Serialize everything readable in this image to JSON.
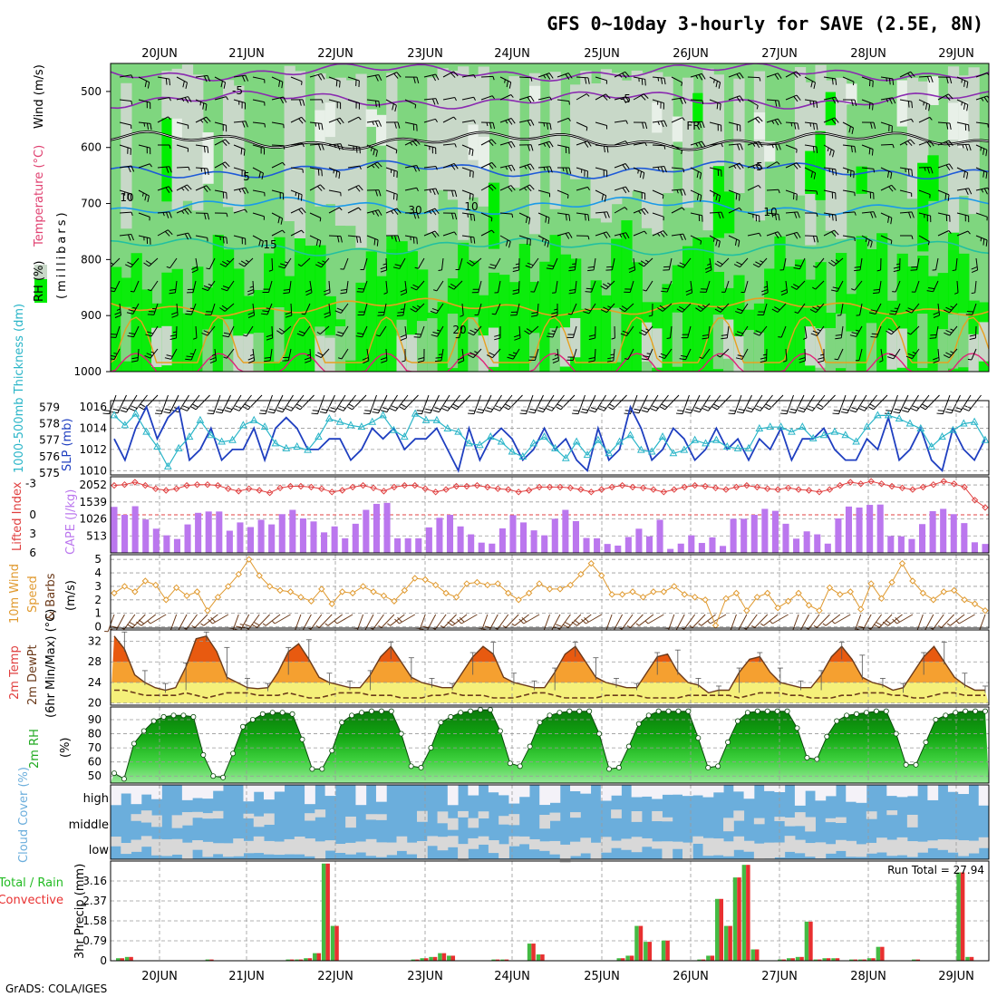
{
  "title": "GFS 0~10day 3-hourly for SAVE (2.5E, 8N)",
  "credit": "GrADS: COLA/IGES",
  "dates": [
    "20JUN",
    "21JUN",
    "22JUN",
    "23JUN",
    "24JUN",
    "25JUN",
    "26JUN",
    "27JUN",
    "28JUN",
    "29JUN"
  ],
  "colors": {
    "rh_green": "#00ee00",
    "rh_mid": "#7fd67f",
    "rh_gray": "#c8d8c8",
    "rh_light": "#e8f0e8",
    "slp": "#1f3fc0",
    "thickness": "#2ab5c8",
    "lifted": "#e04040",
    "cape": "#bb77ee",
    "wind": "#e09a30",
    "temp_hot": "#e85a10",
    "temp_warm": "#f5a030",
    "temp_yellow": "#f5f07a",
    "dewpt": "#6b3a1a",
    "cloud_blue": "#6baedc",
    "cloud_gray": "#d8d8d8",
    "cloud_white": "#f4f2f8",
    "rain": "#e83030",
    "total": "#44bb44"
  },
  "chart_data": [
    {
      "id": "upper",
      "type": "heatmap",
      "ylabel_parts": [
        "RH (%)",
        "Temperature (°C)",
        "Wind (m/s)",
        "(millibars)"
      ],
      "yticks": [
        500,
        600,
        700,
        800,
        900,
        1000
      ],
      "ylim": [
        1000,
        450
      ],
      "contour_labels": [
        "-5",
        "-5",
        "FR",
        "5",
        "5",
        "10",
        "10",
        "15",
        "20",
        "10",
        "30"
      ],
      "contours": [
        {
          "name": "-10",
          "level": 465,
          "color": "#8a2ab0"
        },
        {
          "name": "-5",
          "level": 515,
          "color": "#8a2ab0"
        },
        {
          "name": "FR",
          "level": 588,
          "color": "#000000"
        },
        {
          "name": "5",
          "level": 640,
          "color": "#1e5ad8"
        },
        {
          "name": "10",
          "level": 705,
          "color": "#1a9ae8"
        },
        {
          "name": "15",
          "level": 778,
          "color": "#22c0a0"
        },
        {
          "name": "20",
          "level": 885,
          "color": "#e8a020"
        }
      ]
    },
    {
      "id": "slp_thickness",
      "type": "line",
      "ylabel_left": "1000-500mb Thickness (dm)",
      "ylabel_right": "SLP (mb)",
      "yticks_left": [
        575,
        576,
        577,
        578,
        579
      ],
      "yticks_right": [
        1010,
        1012,
        1014,
        1016
      ],
      "series": [
        {
          "name": "SLP",
          "values": [
            1013,
            1011,
            1014,
            1016,
            1013,
            1015,
            1016,
            1011,
            1012,
            1014,
            1011,
            1012,
            1012,
            1014,
            1011,
            1014,
            1015,
            1014,
            1012,
            1012,
            1013,
            1013,
            1011,
            1012,
            1014,
            1013,
            1014,
            1012,
            1013,
            1013,
            1014,
            1012,
            1010,
            1014,
            1011,
            1013,
            1014,
            1013,
            1011,
            1012,
            1014,
            1012,
            1013,
            1011,
            1010,
            1014,
            1011,
            1012,
            1016,
            1014,
            1011,
            1012,
            1014,
            1013,
            1011,
            1012,
            1014,
            1012,
            1013,
            1011,
            1013,
            1012,
            1014,
            1011,
            1013,
            1013,
            1014,
            1012,
            1011,
            1011,
            1013,
            1012,
            1015,
            1011,
            1012,
            1014,
            1011,
            1010,
            1014,
            1012,
            1011,
            1013
          ]
        },
        {
          "name": "Thickness",
          "values": [
            578.5,
            577.9,
            578.6,
            577.5,
            576.6,
            575.4,
            576.5,
            577.2,
            578.2,
            577.3,
            576.9,
            577.0,
            577.9,
            578.2,
            577.8,
            576.8,
            576.5,
            576.6,
            576.4,
            577.2,
            578.3,
            578.1,
            577.9,
            577.8,
            578.1,
            578.5,
            577.6,
            577.2,
            578.6,
            578.2,
            578.2,
            577.7,
            577.5,
            576.8,
            576.7,
            577.2,
            576.9,
            576.3,
            576.0,
            576.8,
            577.2,
            576.5,
            575.9,
            576.9,
            576.1,
            577.0,
            576.2,
            576.9,
            577.3,
            576.4,
            576.3,
            577.2,
            576.2,
            576.4,
            577.0,
            576.8,
            577.0,
            576.6,
            576.5,
            576.5,
            577.7,
            577.8,
            577.8,
            577.5,
            577.8,
            577.1,
            577.3,
            577.5,
            577.3,
            576.9,
            577.8,
            578.5,
            578.5,
            578.3,
            578.0,
            577.7,
            576.6,
            577.2,
            577.6,
            578.0,
            578.1,
            577.0
          ]
        }
      ]
    },
    {
      "id": "cape_li",
      "type": "bar",
      "ylabel_left": "Lifted Index",
      "ylabel_right": "CAPE (J/kg)",
      "yticks_left": [
        "-3",
        "0",
        "3",
        "6"
      ],
      "yticks_right": [
        "513",
        "1026",
        "1539",
        "2052"
      ],
      "series": [
        {
          "name": "CAPE",
          "values": [
            1390,
            1150,
            1410,
            1010,
            730,
            530,
            420,
            860,
            1210,
            1250,
            1250,
            670,
            920,
            780,
            1000,
            860,
            1170,
            1300,
            1040,
            950,
            620,
            800,
            440,
            880,
            1300,
            1480,
            1510,
            440,
            440,
            440,
            770,
            1060,
            1150,
            800,
            560,
            310,
            280,
            740,
            1140,
            920,
            680,
            530,
            1030,
            1300,
            960,
            450,
            440,
            270,
            220,
            480,
            730,
            500,
            1000,
            120,
            280,
            530,
            300,
            470,
            210,
            1030,
            1030,
            1150,
            1330,
            1270,
            880,
            430,
            650,
            560,
            280,
            1040,
            1400,
            1370,
            1450,
            1460,
            510,
            500,
            420,
            870,
            1260,
            1330,
            1170,
            900,
            320,
            270
          ]
        },
        {
          "name": "Lifted Index",
          "values": [
            -3.6,
            -3.7,
            -4.0,
            -3.6,
            -3.2,
            -3.0,
            -3.2,
            -3.6,
            -3.7,
            -3.7,
            -3.6,
            -3.2,
            -2.9,
            -3.2,
            -3.0,
            -2.7,
            -3.3,
            -3.5,
            -3.5,
            -3.4,
            -3.2,
            -2.8,
            -3.0,
            -3.4,
            -3.6,
            -3.3,
            -2.9,
            -3.4,
            -3.6,
            -3.6,
            -3.2,
            -2.8,
            -3.1,
            -3.5,
            -3.5,
            -3.6,
            -3.4,
            -3.2,
            -3.1,
            -2.8,
            -3.0,
            -3.4,
            -3.4,
            -3.4,
            -3.3,
            -3.1,
            -2.8,
            -3.1,
            -3.4,
            -3.6,
            -3.4,
            -3.3,
            -3.1,
            -2.8,
            -3.1,
            -3.4,
            -3.6,
            -3.5,
            -3.3,
            -3.1,
            -3.4,
            -3.6,
            -3.4,
            -3.2,
            -3.1,
            -3.3,
            -3.1,
            -3.0,
            -2.8,
            -3.1,
            -3.6,
            -4.0,
            -3.8,
            -4.1,
            -3.8,
            -3.5,
            -3.3,
            -3.1,
            -3.4,
            -3.7,
            -4.1,
            -3.8,
            -3.4,
            -1.8,
            -0.9
          ]
        }
      ]
    },
    {
      "id": "wind10m",
      "type": "line",
      "ylabel_parts": [
        "10m Wind",
        "Speed",
        "& Barbs",
        "(m/s)"
      ],
      "yticks": [
        0,
        1,
        2,
        3,
        4,
        5
      ],
      "series": [
        {
          "name": "10m Wind Speed",
          "values": [
            2.5,
            3.0,
            2.6,
            3.4,
            3.1,
            2.0,
            2.9,
            2.3,
            2.6,
            1.2,
            2.2,
            3.0,
            3.9,
            5.0,
            3.8,
            3.0,
            2.7,
            2.6,
            2.2,
            1.9,
            2.8,
            1.7,
            2.6,
            2.5,
            3.0,
            2.6,
            2.3,
            1.9,
            2.7,
            3.6,
            3.5,
            3.1,
            2.5,
            2.2,
            3.2,
            3.3,
            3.1,
            3.2,
            2.5,
            2.0,
            2.5,
            3.2,
            2.8,
            2.8,
            3.1,
            3.9,
            4.7,
            3.8,
            2.4,
            2.4,
            2.6,
            2.2,
            2.6,
            2.6,
            3.0,
            2.4,
            2.2,
            2.0,
            0.1,
            2.1,
            2.5,
            1.2,
            2.2,
            2.5,
            1.4,
            1.9,
            2.5,
            1.6,
            1.2,
            2.9,
            2.4,
            2.6,
            1.3,
            3.2,
            2.1,
            3.3,
            4.7,
            3.4,
            2.5,
            2.0,
            2.6,
            2.7,
            2.0,
            1.7,
            1.2
          ]
        }
      ]
    },
    {
      "id": "temp2m",
      "type": "area",
      "ylabel_parts": [
        "2m Temp",
        "2m DewPt",
        "(6hr Min/Max) (°C)"
      ],
      "yticks": [
        20,
        24,
        28,
        32
      ],
      "ylim": [
        20,
        34
      ],
      "series": [
        {
          "name": "2m Temp",
          "values": [
            33,
            30.5,
            25.5,
            24,
            23,
            22.5,
            23,
            27,
            32.5,
            33,
            30,
            25,
            24,
            23,
            22.8,
            23,
            26,
            30,
            31.5,
            28.5,
            25,
            24,
            23.5,
            23,
            23,
            25.5,
            29,
            31,
            28,
            25,
            24,
            23.5,
            23,
            23,
            26,
            29,
            31,
            29.5,
            25,
            24,
            23.5,
            23,
            23,
            26,
            29.5,
            31,
            28,
            25,
            24,
            23.5,
            23,
            23,
            26,
            29,
            29.5,
            26,
            24,
            23.5,
            22,
            22.5,
            22.5,
            26,
            28.5,
            29,
            26,
            24,
            23.5,
            23,
            23,
            25.5,
            29,
            31,
            28.5,
            25,
            24,
            23.5,
            22.5,
            23,
            26,
            29,
            31,
            28,
            25,
            23.5,
            22.5,
            22.5
          ]
        },
        {
          "name": "2m DewPt",
          "values": [
            22.5,
            22.5,
            22,
            21.5,
            21.5,
            21.5,
            21.5,
            22,
            21.5,
            21,
            21.5,
            22,
            22,
            22,
            21.5,
            21.5,
            21.5,
            22,
            21.5,
            21,
            21,
            21.5,
            22,
            22,
            22,
            21.5,
            21.5,
            21.5,
            21,
            21,
            21,
            21.5,
            21.5,
            22,
            21.5,
            21.5,
            21.5,
            21,
            21,
            21,
            21.5,
            22,
            22,
            21.5,
            21,
            21,
            21,
            21,
            21.5,
            21.5,
            21.5,
            21.5,
            21,
            21,
            21,
            21,
            21.5,
            21.5,
            21.5,
            21.5,
            21.5,
            21,
            21.5,
            22,
            22,
            22,
            21.5,
            21.5,
            21,
            21,
            21,
            21.5,
            21.5,
            22,
            22,
            22,
            21.5,
            21.5,
            21,
            21,
            21.5,
            22,
            22,
            21.5,
            21.5,
            21.5
          ]
        }
      ]
    },
    {
      "id": "rh2m",
      "type": "area",
      "ylabel_parts": [
        "2m RH",
        "(%)"
      ],
      "yticks": [
        50,
        60,
        70,
        80,
        90
      ],
      "ylim": [
        45,
        99
      ],
      "series": [
        {
          "name": "2m RH",
          "values": [
            52,
            48,
            73,
            82,
            89,
            92,
            93,
            93,
            92,
            65,
            50,
            49,
            66,
            85,
            90,
            94,
            95,
            95,
            94,
            76,
            55,
            55,
            68,
            88,
            93,
            95,
            96,
            96,
            96,
            80,
            57,
            56,
            70,
            88,
            92,
            95,
            96,
            97,
            97,
            82,
            59,
            57,
            71,
            88,
            93,
            95,
            96,
            96,
            96,
            80,
            55,
            56,
            71,
            87,
            93,
            96,
            96,
            96,
            96,
            77,
            56,
            57,
            74,
            89,
            95,
            96,
            96,
            96,
            96,
            84,
            63,
            62,
            78,
            89,
            93,
            94,
            95,
            96,
            96,
            80,
            58,
            58,
            74,
            90,
            93,
            95,
            96,
            96,
            96
          ]
        }
      ]
    },
    {
      "id": "cloud",
      "type": "heatmap",
      "ylabel": "Cloud Cover (%)",
      "rows": [
        "high",
        "middle",
        "low"
      ]
    },
    {
      "id": "precip",
      "type": "bar",
      "ylabel_parts": [
        "Total / Rain",
        "Convective",
        "3hr Precip (mm)"
      ],
      "yticks": [
        "0",
        "0.79",
        "1.58",
        "2.37",
        "3.16"
      ],
      "ylim": [
        0,
        3.95
      ],
      "annotation": "Run Total = 27.94",
      "series": [
        {
          "name": "Total",
          "values": [
            0.1,
            0.15,
            0,
            0,
            0,
            0,
            0,
            0,
            0,
            0,
            0.05,
            0,
            0,
            0,
            0,
            0,
            0,
            0,
            0,
            0.05,
            0.05,
            0.1,
            0.3,
            3.85,
            1.38,
            0,
            0,
            0,
            0,
            0,
            0,
            0,
            0,
            0.05,
            0.1,
            0.15,
            0.3,
            0.2,
            0,
            0,
            0,
            0,
            0.05,
            0.05,
            0,
            0,
            0.68,
            0.25,
            0,
            0,
            0,
            0,
            0,
            0,
            0,
            0,
            0.1,
            0.2,
            1.38,
            0.75,
            0,
            0.8,
            0,
            0,
            0,
            0.05,
            0.2,
            2.45,
            1.38,
            3.3,
            3.8,
            0.45,
            0,
            0,
            0.05,
            0.1,
            0.15,
            1.55,
            0.05,
            0.1,
            0.1,
            0,
            0.05,
            0.05,
            0.1,
            0.55,
            0,
            0,
            0,
            0.05,
            0,
            0,
            0,
            0,
            3.5,
            0.15,
            0
          ]
        }
      ]
    }
  ]
}
